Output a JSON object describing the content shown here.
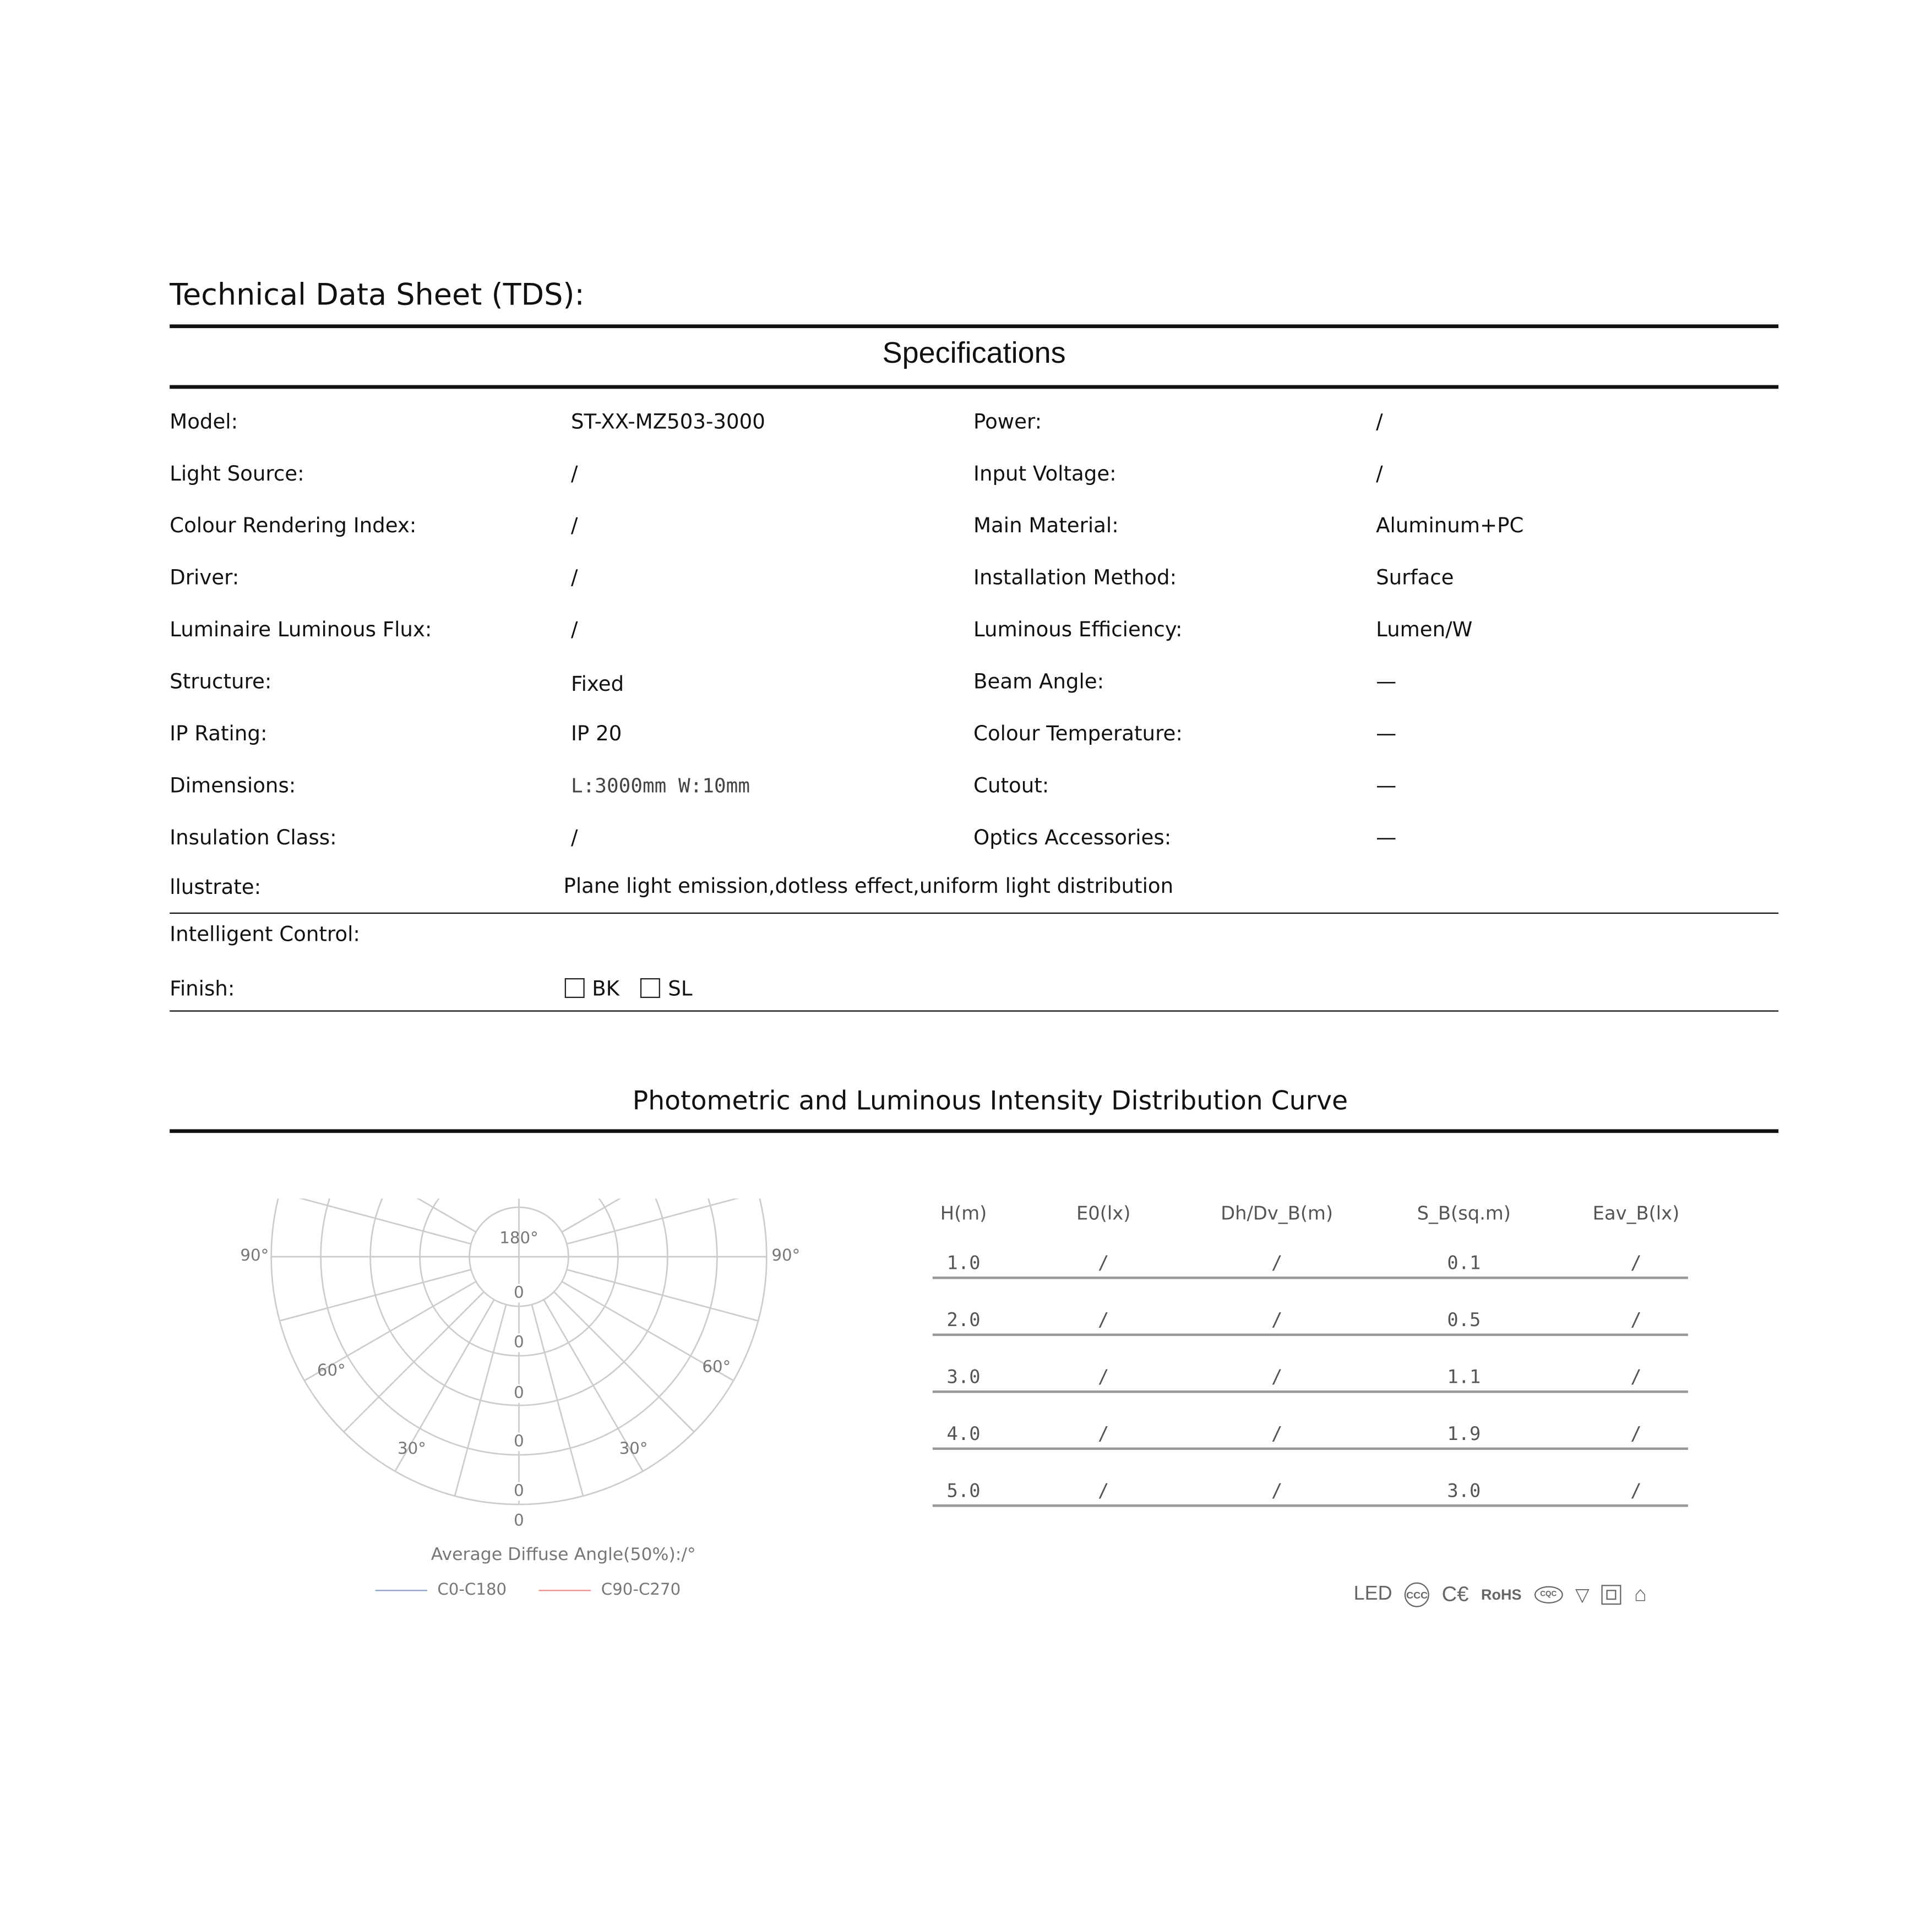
{
  "header": {
    "title": "Technical  Data Sheet (TDS):",
    "section": "Specifications"
  },
  "specs": [
    {
      "l1": "Model:",
      "v1": "ST-XX-MZ503-3000",
      "l2": "Power:",
      "v2": "/"
    },
    {
      "l1": "Light Source:",
      "v1": "/",
      "l2": "Input Voltage:",
      "v2": "/"
    },
    {
      "l1": "Colour Rendering Index:",
      "v1": "/",
      "l2": "Main Material:",
      "v2": "Aluminum+PC"
    },
    {
      "l1": "Driver:",
      "v1": "/",
      "l2": "Installation Method:",
      "v2": "Surface"
    },
    {
      "l1": "Luminaire Luminous Flux:",
      "v1": "/",
      "l2": "Luminous Efficiency:",
      "v2": "Lumen/W"
    },
    {
      "l1": "Structure:",
      "v1": "Fixed",
      "l2": "Beam Angle:",
      "v2": "—"
    },
    {
      "l1": "IP Rating:",
      "v1": "IP 20",
      "l2": "Colour Temperature:",
      "v2": "—"
    },
    {
      "l1": "Dimensions:",
      "v1": "L:3000mm W:10mm",
      "l2": "Cutout:",
      "v2": "—"
    },
    {
      "l1": "Insulation Class:",
      "v1": "/",
      "l2": "Optics Accessories:",
      "v2": "—"
    }
  ],
  "illustrate": {
    "label": "llustrate:",
    "value": "Plane  light  emission,dotless  effect,uniform light distribution"
  },
  "intelligent_control": {
    "label": "Intelligent Control:"
  },
  "finish": {
    "label": "Finish:",
    "options": [
      {
        "label": "BK",
        "checked": false
      },
      {
        "label": "SL",
        "checked": false
      }
    ]
  },
  "photometric": {
    "title": "Photometric and Luminous Intensity Distribution Curve",
    "polar": {
      "top_label": "180°",
      "angle_labels": [
        "90°",
        "90°",
        "60°",
        "60°",
        "30°",
        "30°"
      ],
      "radial_values": [
        "0",
        "0",
        "0",
        "0",
        "0",
        "0"
      ],
      "caption": "Average Diffuse Angle(50%):/°",
      "legend": [
        {
          "name": "C0-C180",
          "color": "#8a9ac8"
        },
        {
          "name": "C90-C270",
          "color": "#f08a86"
        }
      ]
    },
    "table": {
      "headers": [
        "H(m)",
        "E0(lx)",
        "Dh/Dv_B(m)",
        "S_B(sq.m)",
        "Eav_B(lx)"
      ],
      "rows": [
        [
          "1.0",
          "/",
          "/",
          "0.1",
          "/"
        ],
        [
          "2.0",
          "/",
          "/",
          "0.5",
          "/"
        ],
        [
          "3.0",
          "/",
          "/",
          "1.1",
          "/"
        ],
        [
          "4.0",
          "/",
          "/",
          "1.9",
          "/"
        ],
        [
          "5.0",
          "/",
          "/",
          "3.0",
          "/"
        ]
      ]
    }
  },
  "certifications": {
    "led": "LED",
    "ce": "C€",
    "rohs": "RoHS",
    "cqc": "CQC",
    "icons": [
      "ccc-icon",
      "ce-icon",
      "rohs-icon",
      "cqc-icon",
      "f-mark-icon",
      "class-ii-icon",
      "indoor-use-icon"
    ]
  }
}
